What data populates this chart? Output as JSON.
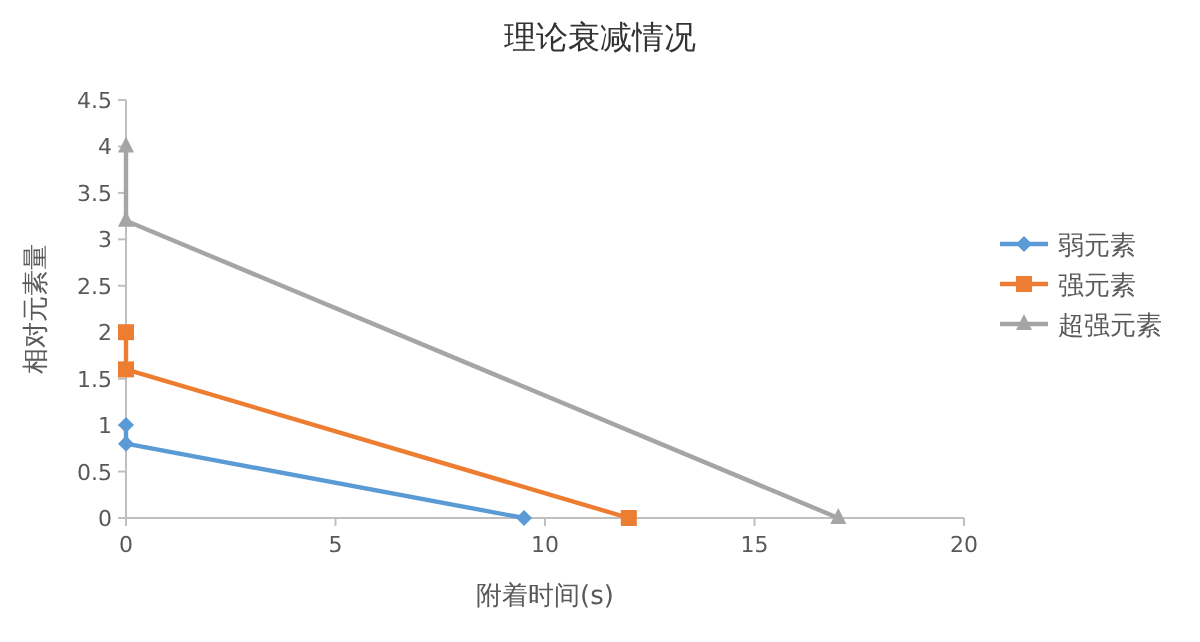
{
  "chart_data": {
    "type": "line",
    "title": "理论衰减情况",
    "xlabel": "附着时间(s)",
    "ylabel": "相对元素量",
    "xlim": [
      0,
      20
    ],
    "xticks": [
      0,
      5,
      10,
      15,
      20
    ],
    "ylim": [
      0,
      4.5
    ],
    "yticks": [
      0,
      0.5,
      1,
      1.5,
      2,
      2.5,
      3,
      3.5,
      4,
      4.5
    ],
    "grid": false,
    "legend": "right",
    "line_style": "solid",
    "series": [
      {
        "name": "弱元素",
        "color": "#5b9bd5",
        "marker": "diamond",
        "x": [
          0,
          0,
          9.5
        ],
        "values": [
          1,
          0.8,
          0
        ]
      },
      {
        "name": "强元素",
        "color": "#ed7d31",
        "marker": "square",
        "x": [
          0,
          0,
          12
        ],
        "values": [
          2,
          1.6,
          0
        ]
      },
      {
        "name": "超强元素",
        "color": "#a5a5a5",
        "marker": "triangle",
        "x": [
          0,
          0,
          17
        ],
        "values": [
          4,
          3.2,
          0
        ]
      }
    ]
  }
}
